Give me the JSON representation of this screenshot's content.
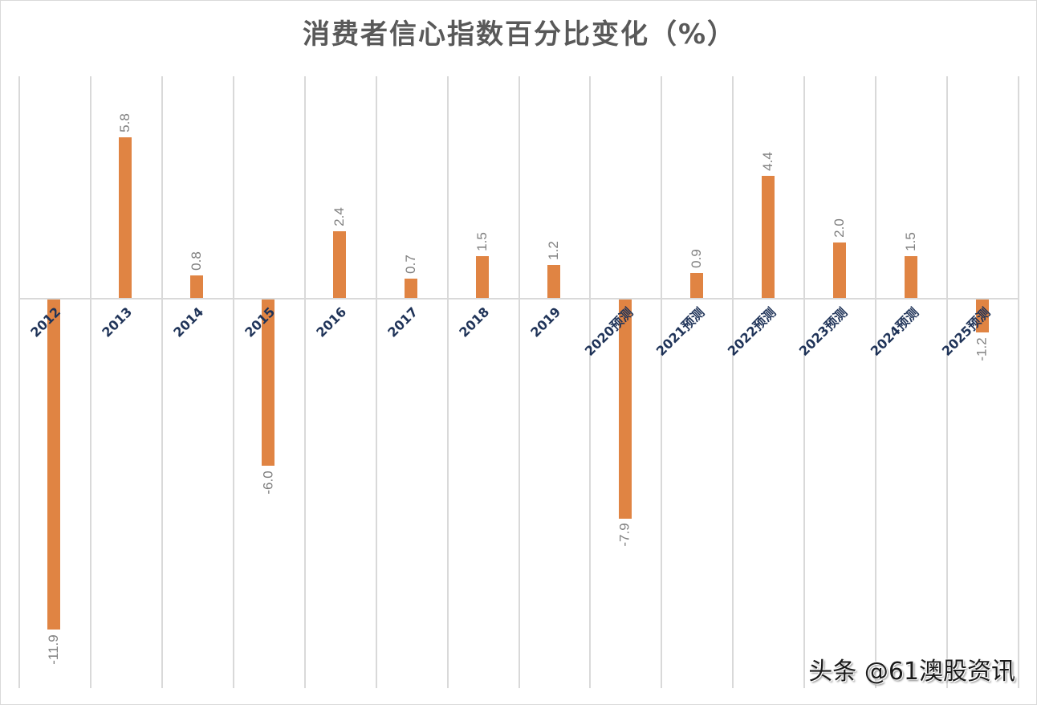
{
  "chart_data": {
    "type": "bar",
    "title": "消费者信心指数百分比变化（%）",
    "xlabel": "",
    "ylabel": "",
    "categories": [
      "2012",
      "2013",
      "2014",
      "2015",
      "2016",
      "2017",
      "2018",
      "2019",
      "2020预测",
      "2021预测",
      "2022预测",
      "2023预测",
      "2024预测",
      "2025预测"
    ],
    "series": [
      {
        "name": "消费者信心指数百分比变化",
        "color": "#e08443",
        "values": [
          -11.9,
          5.8,
          0.8,
          -6.0,
          2.4,
          0.7,
          1.5,
          1.2,
          -7.9,
          0.9,
          4.4,
          2.0,
          1.5,
          -1.2
        ]
      }
    ],
    "data_labels": [
      "-11.9",
      "5.8",
      "0.8",
      "-6.0",
      "2.4",
      "0.7",
      "1.5",
      "1.2",
      "-7.9",
      "0.9",
      "4.4",
      "2.0",
      "1.5",
      "-1.2"
    ],
    "ylim": [
      -14,
      8
    ],
    "grid": "vertical",
    "legend": "none"
  },
  "watermark": "头条 @61澳股资讯"
}
